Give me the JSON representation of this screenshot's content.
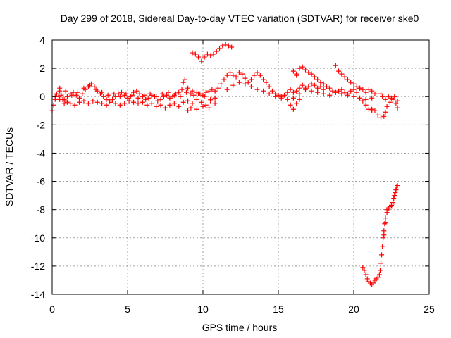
{
  "chart_data": {
    "type": "scatter",
    "title": "Day 299 of 2018, Sidereal Day-to-day VTEC variation (SDTVAR) for receiver ske0",
    "xlabel": "GPS time / hours",
    "ylabel": "SDTVAR / TECUs",
    "xlim": [
      0,
      25
    ],
    "ylim": [
      -14,
      4
    ],
    "x_ticks": [
      0,
      5,
      10,
      15,
      20,
      25
    ],
    "y_ticks": [
      -14,
      -12,
      -10,
      -8,
      -6,
      -4,
      -2,
      0,
      2,
      4
    ],
    "grid": true,
    "marker": "plus",
    "color": "#ff0000",
    "series": [
      {
        "name": "ske0",
        "points": [
          [
            0.0,
            -1.0
          ],
          [
            0.1,
            -0.6
          ],
          [
            0.2,
            -0.2
          ],
          [
            0.3,
            0.2
          ],
          [
            0.4,
            0.0
          ],
          [
            0.5,
            0.4
          ],
          [
            0.6,
            0.1
          ],
          [
            0.7,
            -0.2
          ],
          [
            0.8,
            -0.5
          ],
          [
            0.9,
            -0.3
          ],
          [
            1.0,
            0.0
          ],
          [
            1.2,
            0.2
          ],
          [
            1.4,
            0.3
          ],
          [
            1.6,
            0.1
          ],
          [
            1.8,
            -0.1
          ],
          [
            2.0,
            0.2
          ],
          [
            2.2,
            0.5
          ],
          [
            2.4,
            0.7
          ],
          [
            2.6,
            0.9
          ],
          [
            2.8,
            0.7
          ],
          [
            3.0,
            0.4
          ],
          [
            3.2,
            0.2
          ],
          [
            3.4,
            0.0
          ],
          [
            3.6,
            -0.2
          ],
          [
            3.8,
            -0.3
          ],
          [
            4.0,
            -0.2
          ],
          [
            4.2,
            0.0
          ],
          [
            4.4,
            0.2
          ],
          [
            4.6,
            0.3
          ],
          [
            4.8,
            0.1
          ],
          [
            5.0,
            -0.1
          ],
          [
            5.2,
            0.0
          ],
          [
            5.4,
            0.3
          ],
          [
            5.6,
            0.4
          ],
          [
            5.8,
            0.2
          ],
          [
            6.0,
            0.0
          ],
          [
            6.2,
            -0.2
          ],
          [
            6.4,
            -0.1
          ],
          [
            6.6,
            0.1
          ],
          [
            6.8,
            0.0
          ],
          [
            7.0,
            -0.3
          ],
          [
            7.2,
            -0.2
          ],
          [
            7.4,
            0.0
          ],
          [
            7.6,
            0.1
          ],
          [
            7.8,
            -0.1
          ],
          [
            8.0,
            0.0
          ],
          [
            8.2,
            0.2
          ],
          [
            8.4,
            0.3
          ],
          [
            8.6,
            0.5
          ],
          [
            8.7,
            1.0
          ],
          [
            8.8,
            1.2
          ],
          [
            9.0,
            0.6
          ],
          [
            9.2,
            0.2
          ],
          [
            9.4,
            0.1
          ],
          [
            9.6,
            0.3
          ],
          [
            9.8,
            0.2
          ],
          [
            10.0,
            0.1
          ],
          [
            10.2,
            0.3
          ],
          [
            10.4,
            0.4
          ],
          [
            10.6,
            0.5
          ],
          [
            10.8,
            0.4
          ],
          [
            11.0,
            0.6
          ],
          [
            11.2,
            0.9
          ],
          [
            11.4,
            1.2
          ],
          [
            11.6,
            1.5
          ],
          [
            11.8,
            1.7
          ],
          [
            12.0,
            1.5
          ],
          [
            12.2,
            1.4
          ],
          [
            12.4,
            1.7
          ],
          [
            12.6,
            1.6
          ],
          [
            12.8,
            1.3
          ],
          [
            13.0,
            1.0
          ],
          [
            13.2,
            1.2
          ],
          [
            13.4,
            1.5
          ],
          [
            13.6,
            1.7
          ],
          [
            13.8,
            1.5
          ],
          [
            14.0,
            1.2
          ],
          [
            14.2,
            1.0
          ],
          [
            14.4,
            0.7
          ],
          [
            14.6,
            0.4
          ],
          [
            14.8,
            0.2
          ],
          [
            15.0,
            0.1
          ],
          [
            15.2,
            0.0
          ],
          [
            15.4,
            0.1
          ],
          [
            15.6,
            0.3
          ],
          [
            15.8,
            0.5
          ],
          [
            16.0,
            0.3
          ],
          [
            16.2,
            0.4
          ],
          [
            16.4,
            0.6
          ],
          [
            16.6,
            0.8
          ],
          [
            16.8,
            0.6
          ],
          [
            17.0,
            0.7
          ],
          [
            17.2,
            0.9
          ],
          [
            17.4,
            0.8
          ],
          [
            17.6,
            0.6
          ],
          [
            17.8,
            0.7
          ],
          [
            18.0,
            0.5
          ],
          [
            18.2,
            0.7
          ],
          [
            18.4,
            0.6
          ],
          [
            18.6,
            0.4
          ],
          [
            18.8,
            0.3
          ],
          [
            19.0,
            0.4
          ],
          [
            19.2,
            0.5
          ],
          [
            19.4,
            0.3
          ],
          [
            19.6,
            0.2
          ],
          [
            19.8,
            0.4
          ],
          [
            20.0,
            0.5
          ],
          [
            20.2,
            0.3
          ],
          [
            20.4,
            0.6
          ],
          [
            20.6,
            0.5
          ],
          [
            20.8,
            0.3
          ],
          [
            21.0,
            0.5
          ],
          [
            21.2,
            0.4
          ],
          [
            21.4,
            0.2
          ],
          [
            0.2,
            0.0
          ],
          [
            0.5,
            -0.2
          ],
          [
            0.8,
            -0.2
          ],
          [
            1.0,
            -0.4
          ],
          [
            1.2,
            -0.5
          ],
          [
            1.5,
            -0.6
          ],
          [
            1.8,
            -0.4
          ],
          [
            2.1,
            -0.3
          ],
          [
            2.4,
            -0.5
          ],
          [
            2.7,
            -0.3
          ],
          [
            3.0,
            -0.4
          ],
          [
            3.3,
            -0.5
          ],
          [
            3.6,
            -0.6
          ],
          [
            3.9,
            -0.4
          ],
          [
            4.2,
            -0.5
          ],
          [
            4.5,
            -0.6
          ],
          [
            4.8,
            -0.5
          ],
          [
            5.1,
            -0.3
          ],
          [
            5.4,
            -0.4
          ],
          [
            5.7,
            -0.5
          ],
          [
            6.0,
            -0.4
          ],
          [
            6.3,
            -0.6
          ],
          [
            6.6,
            -0.5
          ],
          [
            6.9,
            -0.7
          ],
          [
            7.2,
            -0.6
          ],
          [
            7.5,
            -0.8
          ],
          [
            7.8,
            -0.6
          ],
          [
            8.1,
            -0.5
          ],
          [
            8.4,
            -0.7
          ],
          [
            8.7,
            -0.4
          ],
          [
            9.0,
            -0.3
          ],
          [
            9.3,
            -0.5
          ],
          [
            9.6,
            -0.2
          ],
          [
            9.9,
            -0.4
          ],
          [
            10.2,
            -0.6
          ],
          [
            10.5,
            -0.3
          ],
          [
            10.8,
            -0.1
          ],
          [
            0.5,
            0.6
          ],
          [
            0.9,
            0.4
          ],
          [
            1.3,
            0.1
          ],
          [
            1.7,
            0.3
          ],
          [
            2.1,
            0.6
          ],
          [
            2.5,
            0.8
          ],
          [
            2.9,
            0.5
          ],
          [
            3.3,
            0.3
          ],
          [
            3.7,
            0.1
          ],
          [
            4.1,
            0.2
          ],
          [
            4.5,
            0.0
          ],
          [
            4.9,
            0.2
          ],
          [
            5.3,
            0.1
          ],
          [
            5.7,
            -0.1
          ],
          [
            6.1,
            0.1
          ],
          [
            6.5,
            0.2
          ],
          [
            6.9,
            0.0
          ],
          [
            7.3,
            0.2
          ],
          [
            7.7,
            0.3
          ],
          [
            8.1,
            0.1
          ],
          [
            8.5,
            0.0
          ],
          [
            8.9,
            0.3
          ],
          [
            9.3,
            0.4
          ],
          [
            9.7,
            0.2
          ],
          [
            10.1,
            0.0
          ],
          [
            10.5,
            -0.2
          ],
          [
            9.0,
            -1.0
          ],
          [
            9.2,
            -0.8
          ],
          [
            9.6,
            -0.9
          ],
          [
            10.0,
            -0.7
          ],
          [
            10.4,
            -0.8
          ],
          [
            10.8,
            -0.5
          ],
          [
            11.6,
            0.5
          ],
          [
            12.0,
            0.8
          ],
          [
            12.4,
            1.0
          ],
          [
            12.8,
            0.9
          ],
          [
            13.2,
            0.7
          ],
          [
            13.6,
            0.5
          ],
          [
            14.0,
            0.4
          ],
          [
            14.4,
            0.2
          ],
          [
            14.8,
            0.0
          ],
          [
            15.2,
            -0.1
          ],
          [
            15.6,
            -0.2
          ],
          [
            16.0,
            -0.1
          ],
          [
            16.4,
            0.2
          ],
          [
            16.8,
            0.5
          ],
          [
            17.2,
            0.4
          ],
          [
            17.6,
            0.3
          ],
          [
            18.0,
            0.2
          ],
          [
            18.4,
            0.1
          ],
          [
            18.8,
            0.3
          ],
          [
            19.2,
            0.2
          ],
          [
            19.6,
            0.1
          ],
          [
            20.0,
            0.0
          ],
          [
            20.4,
            -0.1
          ],
          [
            20.8,
            -0.2
          ],
          [
            21.2,
            -0.1
          ],
          [
            15.8,
            -0.6
          ],
          [
            16.0,
            -0.9
          ],
          [
            16.2,
            -0.5
          ],
          [
            16.4,
            -0.2
          ],
          [
            16.2,
            1.5
          ],
          [
            16.4,
            2.0
          ],
          [
            16.6,
            2.1
          ],
          [
            16.8,
            1.9
          ],
          [
            17.0,
            1.7
          ],
          [
            17.2,
            1.6
          ],
          [
            17.4,
            1.4
          ],
          [
            17.6,
            1.2
          ],
          [
            17.8,
            1.0
          ],
          [
            18.0,
            0.9
          ],
          [
            16.0,
            1.8
          ],
          [
            16.2,
            1.6
          ],
          [
            18.8,
            2.2
          ],
          [
            19.0,
            1.8
          ],
          [
            19.2,
            1.6
          ],
          [
            19.4,
            1.4
          ],
          [
            19.6,
            1.2
          ],
          [
            19.8,
            1.0
          ],
          [
            20.0,
            0.9
          ],
          [
            20.2,
            0.7
          ],
          [
            20.4,
            0.6
          ],
          [
            20.6,
            -0.3
          ],
          [
            20.8,
            -0.6
          ],
          [
            21.0,
            -0.9
          ],
          [
            21.2,
            -1.0
          ],
          [
            9.3,
            3.1
          ],
          [
            9.5,
            3.0
          ],
          [
            9.7,
            2.8
          ],
          [
            9.9,
            2.5
          ],
          [
            10.1,
            2.8
          ],
          [
            10.3,
            3.0
          ],
          [
            10.5,
            2.9
          ],
          [
            10.7,
            3.0
          ],
          [
            10.9,
            3.2
          ],
          [
            11.1,
            3.4
          ],
          [
            11.3,
            3.6
          ],
          [
            11.5,
            3.7
          ],
          [
            11.7,
            3.6
          ],
          [
            11.9,
            3.5
          ],
          [
            21.2,
            -0.9
          ],
          [
            21.4,
            -1.0
          ],
          [
            21.6,
            -1.3
          ],
          [
            21.8,
            -1.5
          ],
          [
            22.0,
            -1.4
          ],
          [
            22.1,
            -1.1
          ],
          [
            22.2,
            -0.7
          ],
          [
            22.4,
            -0.4
          ],
          [
            22.6,
            -0.2
          ],
          [
            22.8,
            -0.5
          ],
          [
            22.9,
            -0.8
          ],
          [
            22.9,
            -0.3
          ],
          [
            22.7,
            0.0
          ],
          [
            22.5,
            -0.1
          ],
          [
            22.3,
            0.0
          ],
          [
            22.1,
            -0.2
          ],
          [
            21.9,
            0.0
          ],
          [
            21.8,
            0.2
          ],
          [
            20.6,
            -12.1
          ],
          [
            20.7,
            -12.3
          ],
          [
            20.8,
            -12.6
          ],
          [
            20.9,
            -12.9
          ],
          [
            21.0,
            -13.1
          ],
          [
            21.1,
            -13.2
          ],
          [
            21.2,
            -13.3
          ],
          [
            21.3,
            -13.2
          ],
          [
            21.4,
            -13.0
          ],
          [
            21.5,
            -12.9
          ],
          [
            21.6,
            -12.8
          ],
          [
            21.7,
            -12.6
          ],
          [
            21.75,
            -12.3
          ],
          [
            21.8,
            -11.8
          ],
          [
            21.85,
            -11.2
          ],
          [
            21.9,
            -10.6
          ],
          [
            21.95,
            -10.0
          ],
          [
            22.0,
            -9.5
          ],
          [
            22.05,
            -9.0
          ],
          [
            22.1,
            -8.6
          ],
          [
            22.2,
            -8.2
          ],
          [
            22.3,
            -7.9
          ],
          [
            22.4,
            -7.8
          ],
          [
            22.5,
            -7.7
          ],
          [
            22.6,
            -7.5
          ],
          [
            22.65,
            -7.2
          ],
          [
            22.7,
            -7.0
          ],
          [
            22.75,
            -6.8
          ],
          [
            22.8,
            -6.6
          ],
          [
            22.85,
            -6.4
          ],
          [
            22.9,
            -6.3
          ],
          [
            22.6,
            -7.6
          ],
          [
            22.4,
            -7.9
          ],
          [
            22.2,
            -8.0
          ],
          [
            22.1,
            -8.9
          ],
          [
            22.0,
            -9.8
          ]
        ]
      }
    ]
  }
}
